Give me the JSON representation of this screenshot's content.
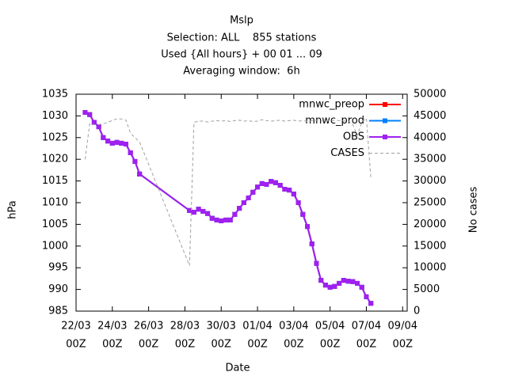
{
  "chart_data": {
    "type": "line",
    "title": [
      "Mslp",
      "Selection: ALL    855 stations",
      "Used {All hours} + 00 01 ... 09",
      "Averaging window:  6h"
    ],
    "xlabel": "Date",
    "ylabel": "hPa",
    "y2label": "No cases",
    "legend": "top-right",
    "xlim": [
      0,
      18.25
    ],
    "xticks": [
      {
        "value": 0,
        "label": [
          "22/03",
          "00Z"
        ]
      },
      {
        "value": 2,
        "label": [
          "24/03",
          "00Z"
        ]
      },
      {
        "value": 4,
        "label": [
          "26/03",
          "00Z"
        ]
      },
      {
        "value": 6,
        "label": [
          "28/03",
          "00Z"
        ]
      },
      {
        "value": 8,
        "label": [
          "30/03",
          "00Z"
        ]
      },
      {
        "value": 10,
        "label": [
          "01/04",
          "00Z"
        ]
      },
      {
        "value": 12,
        "label": [
          "03/04",
          "00Z"
        ]
      },
      {
        "value": 14,
        "label": [
          "05/04",
          "00Z"
        ]
      },
      {
        "value": 16,
        "label": [
          "07/04",
          "00Z"
        ]
      },
      {
        "value": 18,
        "label": [
          "09/04",
          "00Z"
        ]
      }
    ],
    "ylim": [
      985,
      1035
    ],
    "yticks": [
      985,
      990,
      995,
      1000,
      1005,
      1010,
      1015,
      1020,
      1025,
      1030,
      1035
    ],
    "y2lim": [
      0,
      50000
    ],
    "y2ticks": [
      0,
      5000,
      10000,
      15000,
      20000,
      25000,
      30000,
      35000,
      40000,
      45000,
      50000
    ],
    "x": [
      0.5,
      0.75,
      1.0,
      1.25,
      1.5,
      1.75,
      2.0,
      2.25,
      2.5,
      2.75,
      3.0,
      3.25,
      3.5,
      6.25,
      6.5,
      6.75,
      7.0,
      7.25,
      7.5,
      7.75,
      8.0,
      8.25,
      8.5,
      8.75,
      9.0,
      9.25,
      9.5,
      9.75,
      10.0,
      10.25,
      10.5,
      10.75,
      11.0,
      11.25,
      11.5,
      11.75,
      12.0,
      12.25,
      12.5,
      12.75,
      13.0,
      13.25,
      13.5,
      13.75,
      14.0,
      14.25,
      14.5,
      14.75,
      15.0,
      15.25,
      15.5,
      15.75,
      16.0,
      16.25
    ],
    "series": [
      {
        "name": "mnwc_preop",
        "color": "#ff0000",
        "markers": true,
        "values": [
          1030.8,
          1030.3,
          1028.5,
          1027.5,
          1025.0,
          1024.2,
          1023.7,
          1023.9,
          1023.7,
          1023.5,
          1021.5,
          1019.5,
          1016.6,
          1008.2,
          1007.8,
          1008.5,
          1008.0,
          1007.5,
          1006.4,
          1006.0,
          1005.8,
          1006.0,
          1006.0,
          1007.3,
          1008.7,
          1010.0,
          1011.1,
          1012.4,
          1013.6,
          1014.4,
          1014.2,
          1014.9,
          1014.6,
          1014.0,
          1013.1,
          1012.9,
          1012.0,
          1010.0,
          1007.3,
          1004.5,
          1000.5,
          996.0,
          992.1,
          991.0,
          990.5,
          990.7,
          991.4,
          992.1,
          991.9,
          991.8,
          991.4,
          990.5,
          988.3,
          986.8
        ]
      },
      {
        "name": "mnwc_prod",
        "color": "#0080ff",
        "markers": true,
        "values": [
          1030.8,
          1030.3,
          1028.5,
          1027.5,
          1025.0,
          1024.2,
          1023.7,
          1023.9,
          1023.7,
          1023.5,
          1021.5,
          1019.5,
          1016.6,
          1008.2,
          1007.8,
          1008.5,
          1008.0,
          1007.5,
          1006.4,
          1006.0,
          1005.8,
          1006.0,
          1006.0,
          1007.3,
          1008.7,
          1010.0,
          1011.1,
          1012.4,
          1013.6,
          1014.4,
          1014.2,
          1014.9,
          1014.6,
          1014.0,
          1013.1,
          1012.9,
          1012.0,
          1010.0,
          1007.3,
          1004.5,
          1000.5,
          996.0,
          992.1,
          991.0,
          990.5,
          990.7,
          991.4,
          992.1,
          991.9,
          991.8,
          991.4,
          990.5,
          988.3,
          986.8
        ]
      },
      {
        "name": "OBS",
        "color": "#a020f0",
        "markers": true,
        "values": [
          1030.8,
          1030.3,
          1028.5,
          1027.5,
          1025.0,
          1024.2,
          1023.7,
          1023.9,
          1023.7,
          1023.5,
          1021.5,
          1019.5,
          1016.6,
          1008.2,
          1007.8,
          1008.5,
          1008.0,
          1007.5,
          1006.4,
          1006.0,
          1005.8,
          1006.0,
          1006.0,
          1007.3,
          1008.7,
          1010.0,
          1011.1,
          1012.4,
          1013.6,
          1014.4,
          1014.2,
          1014.9,
          1014.6,
          1014.0,
          1013.1,
          1012.9,
          1012.0,
          1010.0,
          1007.3,
          1004.5,
          1000.5,
          996.0,
          992.1,
          991.0,
          990.5,
          990.7,
          991.4,
          992.1,
          991.9,
          991.8,
          991.4,
          990.5,
          988.3,
          986.8
        ]
      },
      {
        "name": "CASES",
        "color": "#a0a0a0",
        "markers": false,
        "dashed": true,
        "axis": "y2",
        "values": [
          35000,
          43200,
          43000,
          43000,
          43200,
          43500,
          44000,
          44300,
          44300,
          44000,
          41000,
          40000,
          39000,
          10500,
          43500,
          43800,
          43800,
          43600,
          43800,
          43900,
          43800,
          43900,
          43700,
          43900,
          44000,
          43800,
          43900,
          43700,
          43800,
          44100,
          43900,
          43800,
          43900,
          44000,
          43800,
          43900,
          44000,
          43800,
          43900,
          43700,
          43900,
          44000,
          43800,
          43900,
          43800,
          44000,
          43900,
          43800,
          43900,
          43000,
          40500,
          43500,
          44500,
          30500
        ]
      }
    ]
  }
}
